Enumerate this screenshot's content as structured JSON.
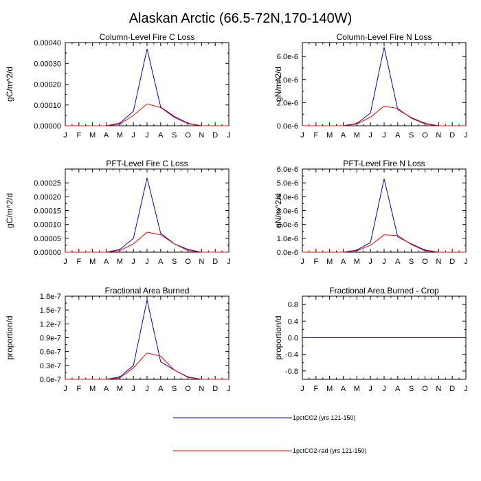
{
  "figure_title": "Alaskan Arctic (66.5-72N,170-140W)",
  "legend": {
    "placement": "bottom-center",
    "entries": [
      {
        "label": "1pctCO2 (yrs 121-150)",
        "color": "#0000cc"
      },
      {
        "label": "1pctCO2-rad (yrs 121-150)",
        "color": "#ff0000"
      }
    ]
  },
  "chart_data": [
    {
      "type": "line",
      "title": "Column-Level Fire C Loss",
      "ylabel": "gC/m^2/d",
      "xlabel": "",
      "x": [
        "J",
        "F",
        "M",
        "A",
        "M",
        "J",
        "J",
        "A",
        "S",
        "O",
        "N",
        "D",
        "J"
      ],
      "ylim": [
        0,
        0.0004
      ],
      "yticks": [
        0,
        0.0001,
        0.0002,
        0.0003,
        0.0004
      ],
      "ytick_labels": [
        "0.00000",
        "0.00010",
        "0.00020",
        "0.00030",
        "0.00040"
      ],
      "grid": false,
      "series": [
        {
          "color": "#0000cc",
          "values": [
            0,
            0,
            0,
            0,
            1.2e-05,
            7e-05,
            0.00037,
            9e-05,
            4.5e-05,
            1.2e-05,
            0,
            0,
            0
          ]
        },
        {
          "color": "#ff0000",
          "values": [
            0,
            0,
            0,
            0,
            8e-06,
            5e-05,
            0.000105,
            8.8e-05,
            4e-05,
            1e-05,
            0,
            0,
            0
          ]
        }
      ]
    },
    {
      "type": "line",
      "title": "Column-Level Fire N Loss",
      "ylabel": "gN/m^2/d",
      "xlabel": "",
      "x": [
        "J",
        "F",
        "M",
        "A",
        "M",
        "J",
        "J",
        "A",
        "S",
        "O",
        "N",
        "D",
        "J"
      ],
      "ylim": [
        0,
        7.2e-06
      ],
      "yticks": [
        0,
        2e-06,
        4e-06,
        6e-06
      ],
      "ytick_labels": [
        "0.0e-6",
        "2.0e-6",
        "4.0e-6",
        "6.0e-6"
      ],
      "grid": false,
      "series": [
        {
          "color": "#0000cc",
          "values": [
            0,
            0,
            0,
            0,
            2e-07,
            1.1e-06,
            6.8e-06,
            1.4e-06,
            7e-07,
            2e-07,
            0,
            0,
            0
          ]
        },
        {
          "color": "#ff0000",
          "values": [
            0,
            0,
            0,
            0,
            1.5e-07,
            7.5e-07,
            1.7e-06,
            1.5e-06,
            6.5e-07,
            1.5e-07,
            0,
            0,
            0
          ]
        }
      ]
    },
    {
      "type": "line",
      "title": "PFT-Level Fire C Loss",
      "ylabel": "gC/m^2/d",
      "xlabel": "",
      "x": [
        "J",
        "F",
        "M",
        "A",
        "M",
        "J",
        "J",
        "A",
        "S",
        "O",
        "N",
        "D",
        "J"
      ],
      "ylim": [
        0,
        0.0003
      ],
      "yticks": [
        0,
        5e-05,
        0.0001,
        0.00015,
        0.0002,
        0.00025
      ],
      "ytick_labels": [
        "0.00000",
        "0.00005",
        "0.00010",
        "0.00015",
        "0.00020",
        "0.00025"
      ],
      "grid": false,
      "series": [
        {
          "color": "#0000cc",
          "values": [
            0,
            0,
            0,
            0,
            1e-05,
            5e-05,
            0.000268,
            6.8e-05,
            3e-05,
            1e-05,
            0,
            0,
            0
          ]
        },
        {
          "color": "#ff0000",
          "values": [
            0,
            0,
            0,
            0,
            6e-06,
            3e-05,
            7.2e-05,
            6.3e-05,
            3e-05,
            6e-06,
            0,
            0,
            0
          ]
        }
      ]
    },
    {
      "type": "line",
      "title": "PFT-Level Fire N Loss",
      "ylabel": "gN/m^2/d",
      "xlabel": "",
      "x": [
        "J",
        "F",
        "M",
        "A",
        "M",
        "J",
        "J",
        "A",
        "S",
        "O",
        "N",
        "D",
        "J"
      ],
      "ylim": [
        0,
        6e-06
      ],
      "yticks": [
        0,
        1e-06,
        2e-06,
        3e-06,
        4e-06,
        5e-06,
        6e-06
      ],
      "ytick_labels": [
        "0.0e-6",
        "1.0e-6",
        "2.0e-6",
        "3.0e-6",
        "4.0e-6",
        "5.0e-6",
        "6.0e-6"
      ],
      "grid": false,
      "series": [
        {
          "color": "#0000cc",
          "values": [
            0,
            0,
            0,
            0,
            1.5e-07,
            7e-07,
            5.3e-06,
            1.1e-06,
            6e-07,
            1.5e-07,
            0,
            0,
            0
          ]
        },
        {
          "color": "#ff0000",
          "values": [
            0,
            0,
            0,
            0,
            1e-07,
            5e-07,
            1.25e-06,
            1.2e-06,
            5.5e-07,
            1e-07,
            0,
            0,
            0
          ]
        }
      ]
    },
    {
      "type": "line",
      "title": "Fractional Area Burned",
      "ylabel": "proportion/d",
      "xlabel": "",
      "x": [
        "J",
        "F",
        "M",
        "A",
        "M",
        "J",
        "J",
        "A",
        "S",
        "O",
        "N",
        "D",
        "J"
      ],
      "ylim": [
        0,
        1.8e-07
      ],
      "yticks": [
        0,
        3e-08,
        6e-08,
        9e-08,
        1.2e-07,
        1.5e-07,
        1.8e-07
      ],
      "ytick_labels": [
        "0.0e-7",
        "0.3e-7",
        "0.6e-7",
        "0.9e-7",
        "1.2e-7",
        "1.5e-7",
        "1.8e-7"
      ],
      "grid": false,
      "series": [
        {
          "color": "#0000cc",
          "values": [
            0,
            0,
            0,
            0,
            5e-09,
            3e-08,
            1.72e-07,
            3.8e-08,
            2e-08,
            5e-09,
            0,
            0,
            0
          ]
        },
        {
          "color": "#ff0000",
          "values": [
            0,
            0,
            0,
            0,
            3e-09,
            2.5e-08,
            5.7e-08,
            5e-08,
            2e-08,
            4e-09,
            0,
            0,
            0
          ]
        }
      ]
    },
    {
      "type": "line",
      "title": "Fractional Area Burned - Crop",
      "ylabel": "proportion/d",
      "xlabel": "",
      "x": [
        "J",
        "F",
        "M",
        "A",
        "M",
        "J",
        "J",
        "A",
        "S",
        "O",
        "N",
        "D",
        "J"
      ],
      "ylim": [
        -1.0,
        1.0
      ],
      "yticks": [
        -0.8,
        -0.4,
        0,
        0.4,
        0.8
      ],
      "ytick_labels": [
        "-0.8",
        "-0.4",
        "0.0",
        "0.4",
        "0.8"
      ],
      "grid": false,
      "series": [
        {
          "color": "#ff0000",
          "values": [
            0,
            0,
            0,
            0,
            0,
            0,
            0,
            0,
            0,
            0,
            0,
            0,
            0
          ]
        },
        {
          "color": "#0000cc",
          "values": [
            0,
            0,
            0,
            0,
            0,
            0,
            0,
            0,
            0,
            0,
            0,
            0,
            0
          ]
        }
      ]
    }
  ]
}
